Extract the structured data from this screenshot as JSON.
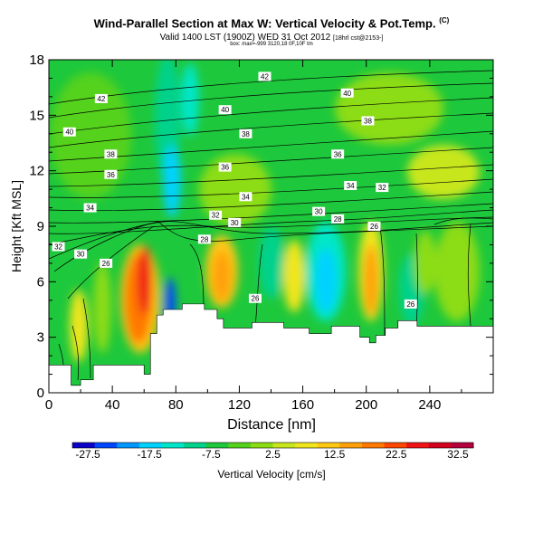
{
  "header": {
    "title": "Wind-Parallel Section at Max W: Vertical Velocity & Pot.Temp.",
    "title_mark": "(C)",
    "valid_line": "Valid 1400 LST (1900Z) WED 31 Oct 2012",
    "valid_suffix": "[18hrl cst@2153-]",
    "sub_line": "box: max=-999 3120,18 0F,10F tm"
  },
  "chart_data": {
    "type": "heatmap",
    "xlabel": "Distance [nm]",
    "ylabel": "Height [Kft MSL]",
    "xlim": [
      0,
      280
    ],
    "ylim": [
      0,
      18
    ],
    "x_ticks": [
      0,
      40,
      80,
      120,
      160,
      200,
      240
    ],
    "y_ticks": [
      0,
      3,
      6,
      9,
      12,
      15,
      18
    ],
    "grid": false,
    "colorbar": {
      "label": "Vertical Velocity [cm/s]",
      "tick_labels": [
        "-27.5",
        "-17.5",
        "-7.5",
        "2.5",
        "12.5",
        "22.5",
        "32.5"
      ],
      "tick_values": [
        -27.5,
        -17.5,
        -7.5,
        2.5,
        12.5,
        22.5,
        32.5
      ],
      "range": [
        -30,
        35
      ],
      "colors": [
        "#0a00c8",
        "#0046ff",
        "#0096ff",
        "#00d2ff",
        "#00e6c8",
        "#00d28c",
        "#1ec83c",
        "#55d21e",
        "#8cdc14",
        "#c8e61e",
        "#f0e61e",
        "#ffc814",
        "#ffa00a",
        "#ff7800",
        "#ff4600",
        "#f01414",
        "#d2001e",
        "#b4003c"
      ]
    },
    "terrain_profile": [
      [
        0,
        1.5
      ],
      [
        14,
        1.5
      ],
      [
        14,
        0.4
      ],
      [
        20,
        0.4
      ],
      [
        20,
        0.7
      ],
      [
        28,
        0.7
      ],
      [
        28,
        1.5
      ],
      [
        60,
        1.5
      ],
      [
        60,
        1.0
      ],
      [
        64,
        1.0
      ],
      [
        64,
        3.2
      ],
      [
        68,
        3.2
      ],
      [
        68,
        4.2
      ],
      [
        72,
        4.2
      ],
      [
        72,
        4.5
      ],
      [
        84,
        4.5
      ],
      [
        84,
        4.8
      ],
      [
        98,
        4.8
      ],
      [
        98,
        4.5
      ],
      [
        106,
        4.5
      ],
      [
        106,
        4.0
      ],
      [
        110,
        4.0
      ],
      [
        110,
        3.5
      ],
      [
        128,
        3.5
      ],
      [
        128,
        3.8
      ],
      [
        148,
        3.8
      ],
      [
        148,
        3.5
      ],
      [
        164,
        3.5
      ],
      [
        164,
        3.2
      ],
      [
        178,
        3.2
      ],
      [
        178,
        3.6
      ],
      [
        196,
        3.6
      ],
      [
        196,
        3.0
      ],
      [
        202,
        3.0
      ],
      [
        202,
        2.7
      ],
      [
        206,
        2.7
      ],
      [
        206,
        3.1
      ],
      [
        212,
        3.1
      ],
      [
        212,
        3.5
      ],
      [
        220,
        3.5
      ],
      [
        220,
        3.9
      ],
      [
        232,
        3.9
      ],
      [
        232,
        3.6
      ],
      [
        280,
        3.6
      ]
    ],
    "contour_labels": [
      {
        "text": "42",
        "x": 33,
        "y": 15.9
      },
      {
        "text": "42",
        "x": 136,
        "y": 17.1
      },
      {
        "text": "40",
        "x": 188,
        "y": 16.2
      },
      {
        "text": "40",
        "x": 13,
        "y": 14.1
      },
      {
        "text": "40",
        "x": 111,
        "y": 15.3
      },
      {
        "text": "38",
        "x": 201,
        "y": 14.7
      },
      {
        "text": "38",
        "x": 124,
        "y": 14.0
      },
      {
        "text": "38",
        "x": 39,
        "y": 12.9
      },
      {
        "text": "36",
        "x": 182,
        "y": 12.9
      },
      {
        "text": "36",
        "x": 39,
        "y": 11.8
      },
      {
        "text": "36",
        "x": 111,
        "y": 12.2
      },
      {
        "text": "34",
        "x": 190,
        "y": 11.2
      },
      {
        "text": "34",
        "x": 124,
        "y": 10.6
      },
      {
        "text": "34",
        "x": 26,
        "y": 10.0
      },
      {
        "text": "32",
        "x": 210,
        "y": 11.1
      },
      {
        "text": "32",
        "x": 105,
        "y": 9.6
      },
      {
        "text": "30",
        "x": 170,
        "y": 9.8
      },
      {
        "text": "30",
        "x": 117,
        "y": 9.2
      },
      {
        "text": "28",
        "x": 182,
        "y": 9.4
      },
      {
        "text": "32",
        "x": 6,
        "y": 7.9
      },
      {
        "text": "30",
        "x": 20,
        "y": 7.5
      },
      {
        "text": "28",
        "x": 98,
        "y": 8.3
      },
      {
        "text": "26",
        "x": 205,
        "y": 9.0
      },
      {
        "text": "26",
        "x": 36,
        "y": 7.0
      },
      {
        "text": "26",
        "x": 130,
        "y": 5.1
      },
      {
        "text": "26",
        "x": 228,
        "y": 4.8
      }
    ]
  }
}
